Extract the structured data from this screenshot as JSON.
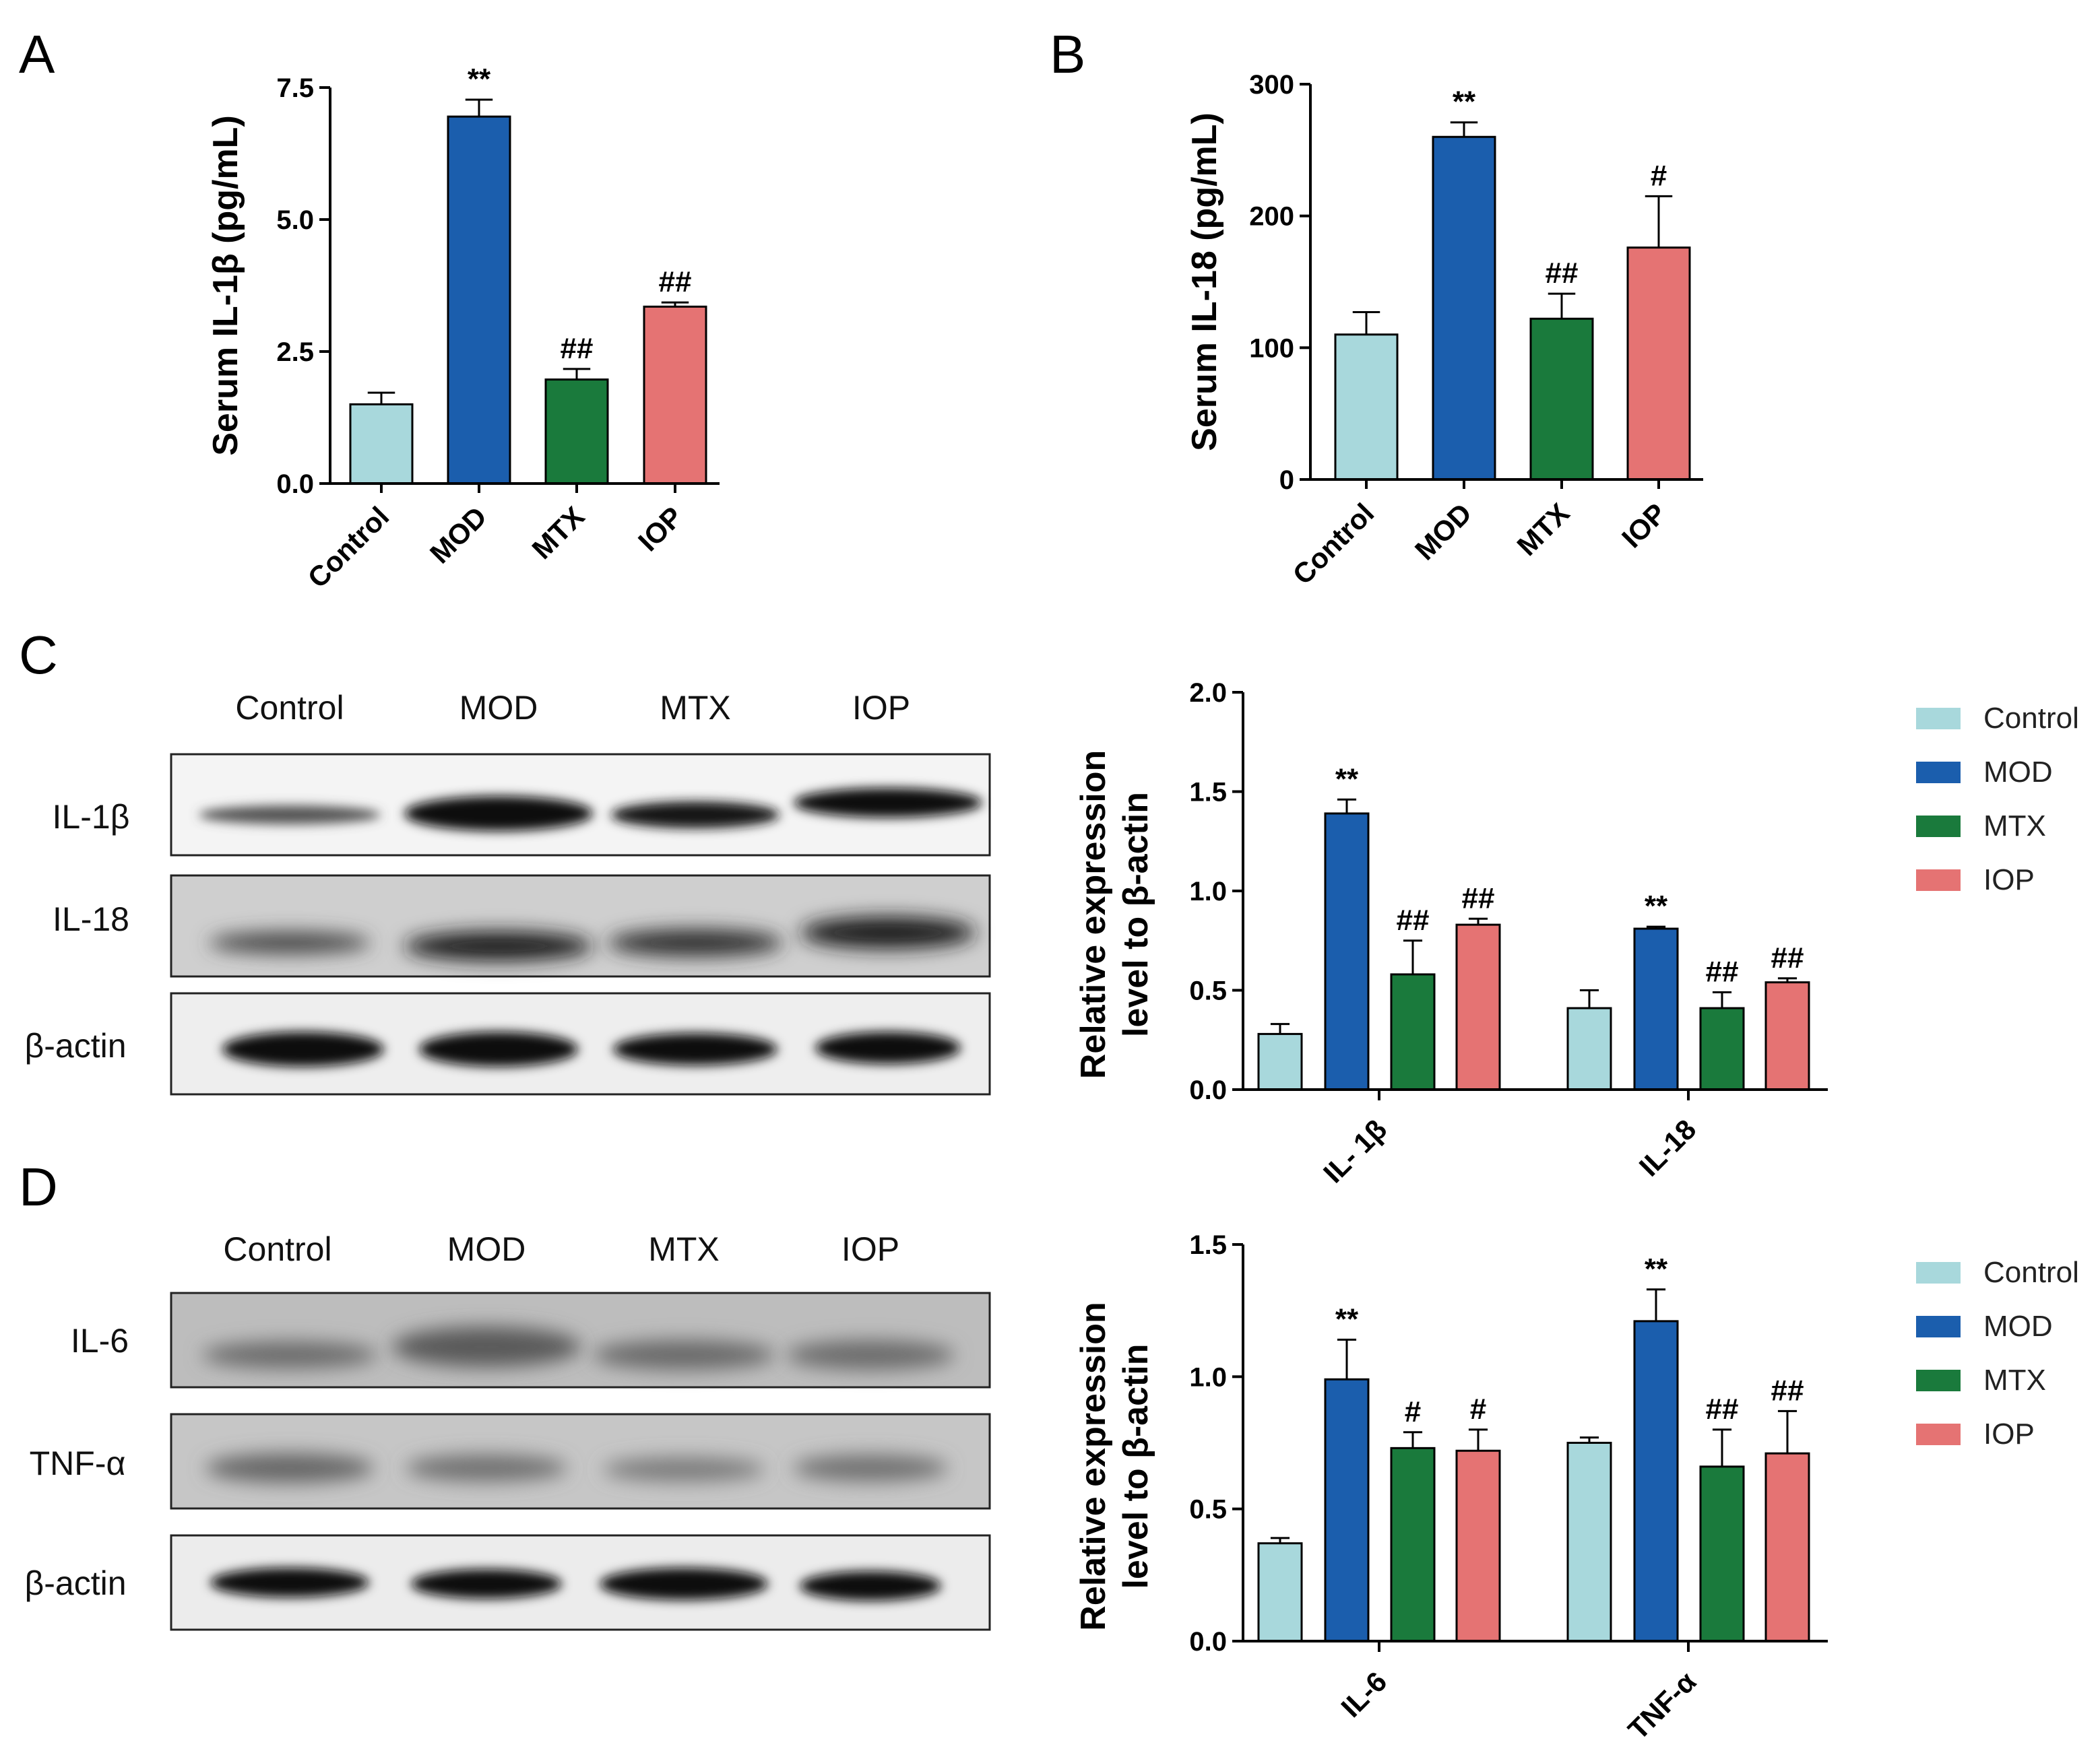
{
  "colors": {
    "Control": "#a8d8dc",
    "MOD": "#1b5ead",
    "MTX": "#1a7a3c",
    "IOP": "#e57373"
  },
  "panel_letters": [
    "A",
    "B",
    "C",
    "D"
  ],
  "blots": [
    {
      "lanes": [
        "Control",
        "MOD",
        "MTX",
        "IOP"
      ],
      "rows": [
        "IL-1β",
        "IL-18",
        "β-actin"
      ]
    },
    {
      "lanes": [
        "Control",
        "MOD",
        "MTX",
        "IOP"
      ],
      "rows": [
        "IL-6",
        "TNF-α",
        "β-actin"
      ]
    }
  ],
  "chart_data": [
    {
      "type": "bar",
      "panel": "A",
      "ylabel": "Serum IL-1β (pg/mL)",
      "categories": [
        "Control",
        "MOD",
        "MTX",
        "IOP"
      ],
      "values": [
        1.5,
        6.95,
        1.97,
        3.35
      ],
      "errors": [
        0.22,
        0.32,
        0.2,
        0.08
      ],
      "significance": [
        "",
        "**",
        "##",
        "##"
      ],
      "yticks": [
        "0.0",
        "2.5",
        "5.0",
        "7.5"
      ],
      "ylim": [
        0,
        7.5
      ]
    },
    {
      "type": "bar",
      "panel": "B",
      "ylabel": "Serum IL-18 (pg/mL)",
      "categories": [
        "Control",
        "MOD",
        "MTX",
        "IOP"
      ],
      "values": [
        110,
        260,
        122,
        176
      ],
      "errors": [
        17,
        11,
        19,
        39
      ],
      "significance": [
        "",
        "**",
        "##",
        "#"
      ],
      "yticks": [
        "0",
        "100",
        "200",
        "300"
      ],
      "ylim": [
        0,
        300
      ]
    },
    {
      "type": "bar",
      "panel": "C",
      "ylabel": [
        "Relative expression",
        "level to β-actin"
      ],
      "categories": [
        "IL- 1β",
        "IL-18"
      ],
      "legend": [
        "Control",
        "MOD",
        "MTX",
        "IOP"
      ],
      "legend_position": "right",
      "series": [
        {
          "name": "Control",
          "values": [
            0.28,
            0.41
          ],
          "errors": [
            0.05,
            0.09
          ],
          "significance": [
            "",
            ""
          ]
        },
        {
          "name": "MOD",
          "values": [
            1.39,
            0.81
          ],
          "errors": [
            0.07,
            0.01
          ],
          "significance": [
            "**",
            "**"
          ]
        },
        {
          "name": "MTX",
          "values": [
            0.58,
            0.41
          ],
          "errors": [
            0.17,
            0.08
          ],
          "significance": [
            "##",
            "##"
          ]
        },
        {
          "name": "IOP",
          "values": [
            0.83,
            0.54
          ],
          "errors": [
            0.03,
            0.02
          ],
          "significance": [
            "##",
            "##"
          ]
        }
      ],
      "yticks": [
        "0.0",
        "0.5",
        "1.0",
        "1.5",
        "2.0"
      ],
      "ylim": [
        0,
        2.0
      ]
    },
    {
      "type": "bar",
      "panel": "D",
      "ylabel": [
        "Relative expression",
        "level to β-actin"
      ],
      "categories": [
        "IL-6",
        "TNF-α"
      ],
      "legend": [
        "Control",
        "MOD",
        "MTX",
        "IOP"
      ],
      "legend_position": "right",
      "series": [
        {
          "name": "Control",
          "values": [
            0.37,
            0.75
          ],
          "errors": [
            0.02,
            0.02
          ],
          "significance": [
            "",
            ""
          ]
        },
        {
          "name": "MOD",
          "values": [
            0.99,
            1.21
          ],
          "errors": [
            0.15,
            0.12
          ],
          "significance": [
            "**",
            "**"
          ]
        },
        {
          "name": "MTX",
          "values": [
            0.73,
            0.66
          ],
          "errors": [
            0.06,
            0.14
          ],
          "significance": [
            "#",
            "##"
          ]
        },
        {
          "name": "IOP",
          "values": [
            0.72,
            0.71
          ],
          "errors": [
            0.08,
            0.16
          ],
          "significance": [
            "#",
            "##"
          ]
        }
      ],
      "yticks": [
        "0.0",
        "0.5",
        "1.0",
        "1.5"
      ],
      "ylim": [
        0,
        1.5
      ]
    }
  ]
}
